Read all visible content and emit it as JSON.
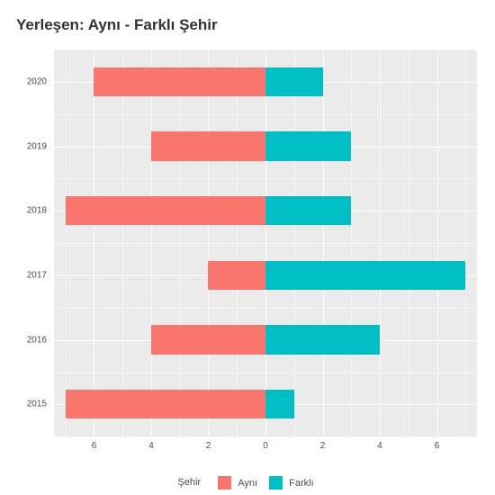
{
  "chart": {
    "type": "diverging-bar",
    "title": "Yerleşen: Aynı - Farklı Şehir",
    "title_fontsize": 17,
    "background_color": "#ffffff",
    "panel_color": "#ebebeb",
    "grid_major_color": "#ffffff",
    "grid_minor_color": "#f5f5f5",
    "label_color": "#4d4d4d",
    "categories": [
      "2015",
      "2016",
      "2017",
      "2018",
      "2019",
      "2020"
    ],
    "left": {
      "name": "Aynı",
      "color": "#f8766d",
      "values": [
        7,
        4,
        2,
        7,
        4,
        6
      ]
    },
    "right": {
      "name": "Farklı",
      "color": "#00bfc4",
      "values": [
        1,
        4,
        7,
        3,
        3,
        2
      ]
    },
    "x_ticks": [
      -6,
      -4,
      -2,
      0,
      2,
      4,
      6
    ],
    "x_tick_labels": [
      "6",
      "4",
      "2",
      "0",
      "2",
      "4",
      "6"
    ],
    "x_range": [
      -7.4,
      7.4
    ],
    "bar_width": 0.9,
    "legend": {
      "title": "Şehir",
      "items": [
        "Aynı",
        "Farklı"
      ]
    }
  }
}
